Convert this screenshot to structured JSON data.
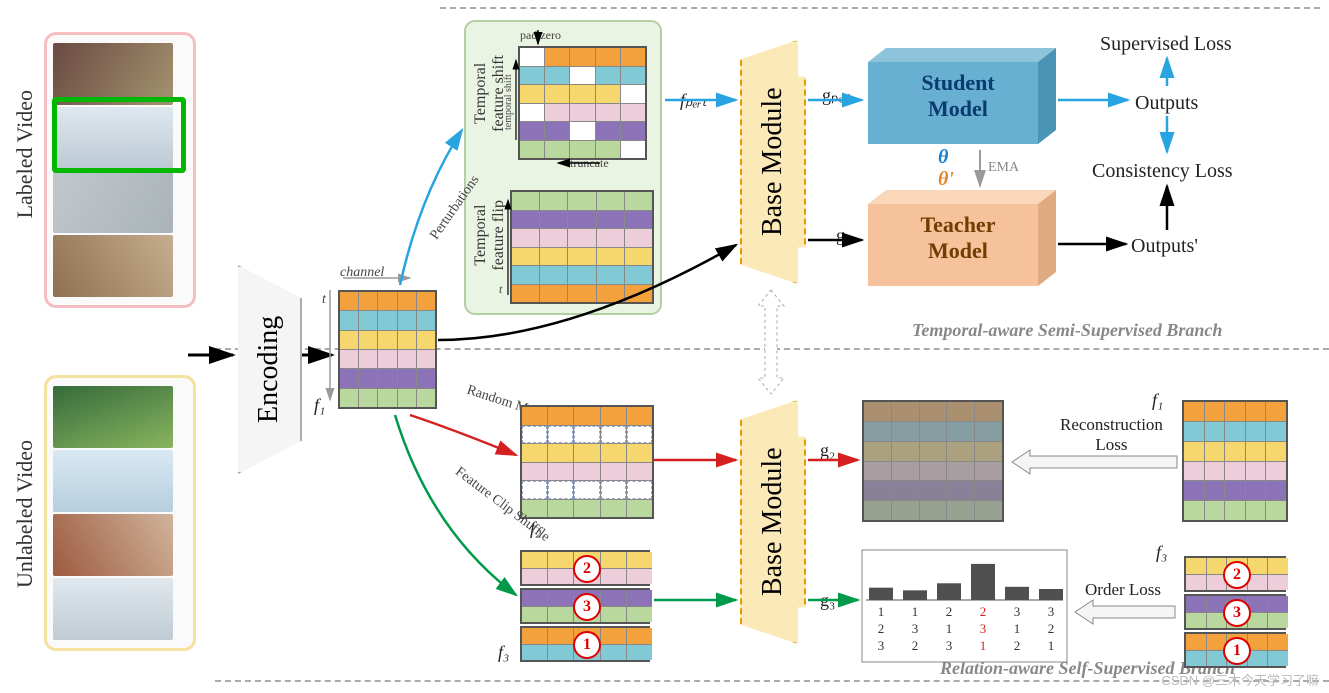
{
  "colors": {
    "orange": "#f2a13c",
    "teal": "#82c9d6",
    "yellow": "#f5d76e",
    "pink": "#eccdd9",
    "purple": "#8c73b8",
    "green": "#b8d89e",
    "white": "#ffffff",
    "fade": 0.32,
    "mask_border": "#99a8c9",
    "student_fill": "#67b0d1",
    "student_side": "#4a93b5",
    "student_top": "#8dc4db",
    "teacher_fill": "#f5c29c",
    "teacher_side": "#e0aa80",
    "teacher_top": "#fad7b8",
    "blue_arrow": "#28a4e0",
    "black_arrow": "#000000",
    "gray_arrow": "#9a9a9a",
    "red_arrow": "#d42020",
    "green_arrow": "#009a4a",
    "order_bar": "#4f4f4f"
  },
  "labels": {
    "labeled": "Labeled Video",
    "unlabeled": "Unlabeled Video",
    "encoding": "Encoding",
    "channel": "channel",
    "t": "t",
    "f1": "f₁",
    "f2": "f₂",
    "f3": "f₃",
    "pert": "Perturbations",
    "padzero": "pad zero",
    "truncate": "truncate",
    "tshift_axis": "temporal shift",
    "tshift": "Temporal\nfeature shift",
    "tflip": "Temporal\nfeature flip",
    "fpert": "fₚₑᵣₜ",
    "random_mask": "Random Mask",
    "shuffle": "Feature Clip Shuffle",
    "base": "Base Module",
    "gpert": "gₚₑᵣₜ",
    "g1": "g₁",
    "g2": "g₂",
    "g3": "g₃",
    "student": "Student\nModel",
    "teacher": "Teacher\nModel",
    "theta": "θ",
    "theta2": "θ'",
    "ema": "EMA",
    "suploss": "Supervised Loss",
    "outputs": "Outputs",
    "closs": "Consistency Loss",
    "outputs2": "Outputs'",
    "recon_loss": "Reconstruction\nLoss",
    "order_loss": "Order Loss",
    "branch1": "Temporal-aware Semi-Supervised Branch",
    "branch2": "Relation-aware Self-Supervised Branch",
    "watermark": "CSDN @三木今天学习了嘛"
  },
  "feature_map": {
    "rows": [
      "orange",
      "teal",
      "yellow",
      "pink",
      "purple",
      "green"
    ],
    "cols": 5
  },
  "shift_map": {
    "rows": [
      [
        "white",
        "orange",
        "orange",
        "orange",
        "orange"
      ],
      [
        "teal",
        "teal",
        "white",
        "teal",
        "teal"
      ],
      [
        "yellow",
        "yellow",
        "yellow",
        "yellow",
        "white"
      ],
      [
        "white",
        "pink",
        "pink",
        "pink",
        "pink"
      ],
      [
        "purple",
        "purple",
        "white",
        "purple",
        "purple"
      ],
      [
        "green",
        "green",
        "green",
        "green",
        "white"
      ]
    ]
  },
  "flip_map": {
    "rows": [
      "green",
      "purple",
      "pink",
      "yellow",
      "teal",
      "orange"
    ]
  },
  "mask_map": {
    "rows": [
      "orange",
      "mask",
      "yellow",
      "pink",
      "mask",
      "green"
    ]
  },
  "shuffle_map": {
    "groups": [
      "yellow-pink",
      "purple-green",
      "orange-teal"
    ],
    "order": [
      "2",
      "3",
      "1"
    ]
  },
  "recon_target": {
    "rows": [
      "orange",
      "teal",
      "yellow",
      "pink",
      "purple",
      "green"
    ]
  },
  "shuffle_target": {
    "groups": [
      "yellow-pink",
      "purple-green",
      "orange-teal"
    ],
    "order": [
      "2",
      "3",
      "1"
    ]
  },
  "order_perms": {
    "bars": [
      0.28,
      0.22,
      0.38,
      0.82,
      0.3,
      0.25
    ],
    "cols": [
      [
        "1",
        "2",
        "3"
      ],
      [
        "1",
        "3",
        "2"
      ],
      [
        "2",
        "1",
        "3"
      ],
      [
        "2",
        "3",
        "1"
      ],
      [
        "3",
        "1",
        "2"
      ],
      [
        "3",
        "2",
        "1"
      ]
    ],
    "highlight": 3
  }
}
